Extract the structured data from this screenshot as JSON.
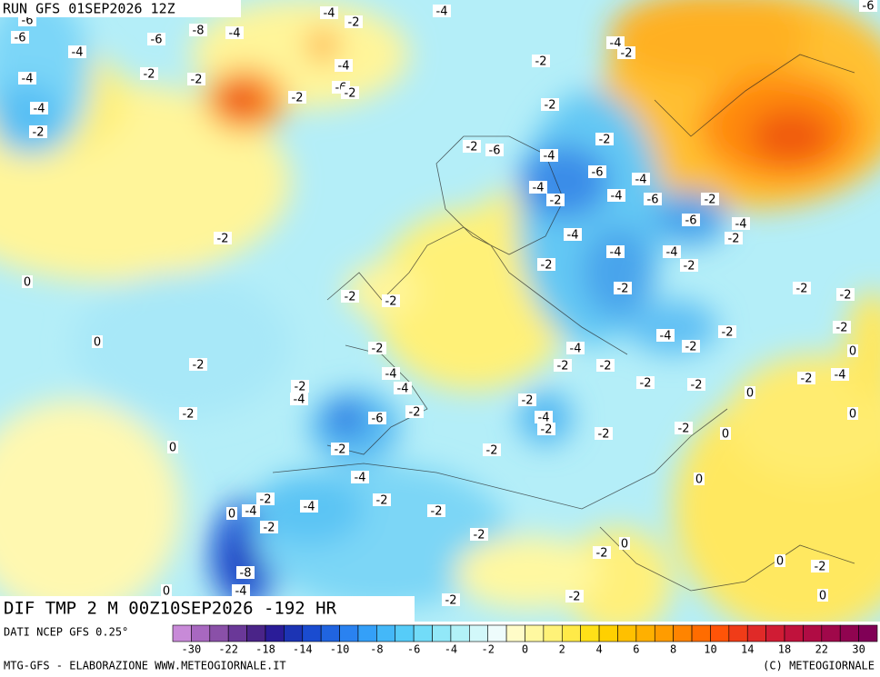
{
  "header": {
    "title": "RUN GFS 01SEP2026 12Z"
  },
  "map": {
    "labels": [
      "-6",
      "-6",
      "-4",
      "-6",
      "-8",
      "-4",
      "-4",
      "-2",
      "-4",
      "-6",
      "-4",
      "-2",
      "-2",
      "-4",
      "-2",
      "-4",
      "-6",
      "-2",
      "-2",
      "-2",
      "-4",
      "-2",
      "-2",
      "-2",
      "-2",
      "-6",
      "-4",
      "-6",
      "-4",
      "-4",
      "-2",
      "-4",
      "-6",
      "-2",
      "-6",
      "-4",
      "-2",
      "-2",
      "-4",
      "-4",
      "-4",
      "-2",
      "-2",
      "0",
      "-2",
      "-2",
      "-2",
      "-2",
      "-2",
      "0",
      "-2",
      "-4",
      "-4",
      "-2",
      "-2",
      "-2",
      "0",
      "-2",
      "-4",
      "-2",
      "-2",
      "-2",
      "-2",
      "-2",
      "-4",
      "-2",
      "-4",
      "-4",
      "-2",
      "-2",
      "0",
      "-2",
      "-6",
      "-4",
      "-2",
      "-2",
      "-2",
      "0",
      "0",
      "0",
      "-2",
      "-2",
      "-4",
      "0",
      "-2",
      "-4",
      "-2",
      "-2",
      "0",
      "-4",
      "-2",
      "-2",
      "-2",
      "0",
      "0",
      "-2",
      "-8",
      "0",
      "-4",
      "-2",
      "-2",
      "0"
    ]
  },
  "footer": {
    "variable": "DIF TMP 2 M 00Z10SEP2026 -192 HR",
    "source": "DATI NCEP GFS 0.25°",
    "credit": "MTG-GFS - ELABORAZIONE WWW.METEOGIORNALE.IT",
    "copyright": "(C) METEOGIORNALE"
  },
  "colorbar": {
    "colors": [
      "#c88ad8",
      "#a868c0",
      "#8a50a8",
      "#6a3898",
      "#4a2488",
      "#2a1c98",
      "#1c34b4",
      "#1a4cd0",
      "#2064e0",
      "#2a82f0",
      "#34a0f8",
      "#44b8f8",
      "#56ccf8",
      "#72dcf8",
      "#92e8f8",
      "#b2f2f8",
      "#d2f8fa",
      "#eefcfc",
      "#fffcc8",
      "#fff8a0",
      "#fff278",
      "#ffea48",
      "#ffe018",
      "#ffd000",
      "#ffc000",
      "#ffb000",
      "#ff9c00",
      "#ff8400",
      "#ff6c00",
      "#ff5408",
      "#f03c18",
      "#e02a28",
      "#d01c34",
      "#c0123c",
      "#b00c44",
      "#a0084a",
      "#900450",
      "#800056"
    ],
    "labels": [
      -30,
      -22,
      -18,
      -14,
      -10,
      -8,
      -6,
      -4,
      -2,
      0,
      2,
      4,
      6,
      8,
      10,
      14,
      18,
      22,
      30
    ]
  }
}
